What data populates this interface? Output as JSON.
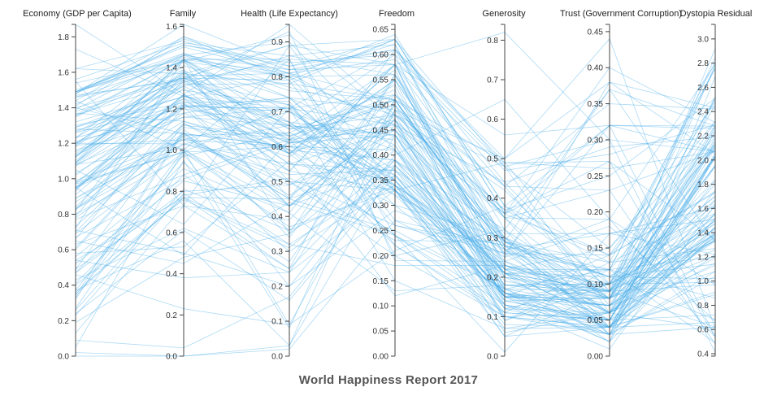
{
  "title": "World Happiness Report 2017",
  "colors": {
    "line": "#4aaee8",
    "axis": "#444444",
    "text": "#222222",
    "title": "#555555"
  },
  "chart_data": {
    "type": "parallel-coordinates",
    "title": "World Happiness Report 2017",
    "dimensions": [
      {
        "name": "Economy (GDP per Capita)",
        "range": [
          0,
          1.87
        ],
        "ticks": [
          "0.0",
          "0.2",
          "0.4",
          "0.6",
          "0.8",
          "1.0",
          "1.2",
          "1.4",
          "1.6",
          "1.8"
        ]
      },
      {
        "name": "Family",
        "range": [
          0,
          1.61
        ],
        "ticks": [
          "0.0",
          "0.2",
          "0.4",
          "0.6",
          "0.8",
          "1.0",
          "1.2",
          "1.4",
          "1.6"
        ]
      },
      {
        "name": "Health (Life Expectancy)",
        "range": [
          0,
          0.95
        ],
        "ticks": [
          "0.0",
          "0.1",
          "0.2",
          "0.3",
          "0.4",
          "0.5",
          "0.6",
          "0.7",
          "0.8",
          "0.9"
        ]
      },
      {
        "name": "Freedom",
        "range": [
          0,
          0.66
        ],
        "ticks": [
          "0.00",
          "0.05",
          "0.10",
          "0.15",
          "0.20",
          "0.25",
          "0.30",
          "0.35",
          "0.40",
          "0.45",
          "0.50",
          "0.55",
          "0.60",
          "0.65"
        ]
      },
      {
        "name": "Generosity",
        "range": [
          0,
          0.84
        ],
        "ticks": [
          "0.0",
          "0.1",
          "0.2",
          "0.3",
          "0.4",
          "0.5",
          "0.6",
          "0.7",
          "0.8"
        ]
      },
      {
        "name": "Trust (Government Corruption)",
        "range": [
          0,
          0.46
        ],
        "ticks": [
          "0.00",
          "0.05",
          "0.10",
          "0.15",
          "0.20",
          "0.25",
          "0.30",
          "0.35",
          "0.40",
          "0.45"
        ]
      },
      {
        "name": "Dystopia Residual",
        "range": [
          0.38,
          3.12
        ],
        "ticks": [
          "0.4",
          "0.6",
          "0.8",
          "1.0",
          "1.2",
          "1.4",
          "1.6",
          "1.8",
          "2.0",
          "2.2",
          "2.4",
          "2.6",
          "2.8",
          "3.0"
        ]
      }
    ],
    "rows": [
      [
        1.62,
        1.53,
        0.8,
        0.64,
        0.36,
        0.32,
        2.28
      ],
      [
        1.48,
        1.55,
        0.79,
        0.63,
        0.36,
        0.4,
        2.31
      ],
      [
        1.48,
        1.61,
        0.83,
        0.63,
        0.48,
        0.15,
        2.32
      ],
      [
        1.56,
        1.52,
        0.86,
        0.62,
        0.29,
        0.37,
        2.28
      ],
      [
        1.44,
        1.54,
        0.81,
        0.62,
        0.25,
        0.38,
        2.43
      ],
      [
        1.49,
        1.5,
        0.81,
        0.59,
        0.47,
        0.28,
        2.29
      ],
      [
        1.48,
        1.51,
        0.83,
        0.61,
        0.44,
        0.29,
        2.19
      ],
      [
        1.41,
        1.55,
        0.82,
        0.61,
        0.5,
        0.38,
        2.05
      ],
      [
        1.49,
        1.51,
        0.84,
        0.6,
        0.48,
        0.3,
        2.07
      ],
      [
        1.49,
        1.46,
        0.82,
        0.58,
        0.56,
        0.32,
        2.07
      ],
      [
        1.38,
        1.35,
        0.67,
        0.34,
        0.25,
        0.19,
        2.79
      ],
      [
        1.5,
        1.47,
        0.77,
        0.48,
        0.37,
        0.25,
        2.51
      ],
      [
        1.09,
        1.32,
        0.78,
        0.51,
        0.2,
        0.08,
        2.92
      ],
      [
        1.42,
        1.46,
        0.9,
        0.41,
        0.26,
        0.32,
        2.26
      ],
      [
        1.49,
        1.45,
        0.8,
        0.56,
        0.35,
        0.23,
        2.07
      ],
      [
        1.54,
        1.44,
        0.81,
        0.51,
        0.49,
        0.26,
        2.07
      ],
      [
        1.46,
        1.43,
        0.8,
        0.46,
        0.36,
        0.14,
        2.13
      ],
      [
        1.29,
        1.26,
        0.67,
        0.44,
        0.09,
        0.1,
        2.5
      ],
      [
        1.62,
        1.37,
        0.78,
        0.63,
        0.38,
        0.14,
        1.74
      ],
      [
        1.32,
        1.29,
        0.72,
        0.37,
        0.15,
        0.02,
        2.69
      ],
      [
        1.26,
        1.22,
        0.61,
        0.47,
        0.09,
        0.12,
        2.81
      ],
      [
        1.73,
        1.26,
        0.71,
        0.61,
        0.32,
        0.37,
        1.32
      ],
      [
        1.35,
        1.39,
        0.63,
        0.5,
        0.14,
        0.08,
        2.46
      ],
      [
        1.15,
        1.34,
        0.66,
        0.44,
        0.18,
        0.09,
        2.52
      ],
      [
        1.14,
        1.31,
        0.62,
        0.51,
        0.26,
        0.12,
        2.76
      ],
      [
        1.4,
        1.35,
        0.79,
        0.27,
        0.21,
        0.02,
        2.03
      ],
      [
        1.4,
        1.08,
        0.6,
        0.34,
        0.11,
        0.13,
        2.76
      ],
      [
        1.37,
        1.14,
        0.57,
        0.55,
        0.28,
        0.1,
        2.32
      ],
      [
        1.19,
        1.05,
        0.6,
        0.41,
        0.12,
        0.03,
        2.52
      ],
      [
        1.87,
        1.27,
        0.95,
        0.48,
        0.36,
        0.27,
        1.34
      ],
      [
        1.35,
        1.44,
        0.85,
        0.24,
        0.17,
        0.03,
        2.03
      ],
      [
        1.23,
        1.21,
        0.74,
        0.49,
        0.22,
        0.04,
        2.15
      ],
      [
        1.09,
        1.33,
        0.62,
        0.58,
        0.16,
        0.03,
        2.06
      ],
      [
        1.1,
        1.44,
        0.65,
        0.51,
        0.27,
        0.17,
        1.61
      ],
      [
        1.36,
        1.44,
        0.7,
        0.36,
        0.22,
        0.12,
        2.1
      ],
      [
        1.13,
        1.35,
        0.65,
        0.48,
        0.18,
        0.08,
        2.26
      ],
      [
        1.39,
        1.47,
        0.74,
        0.34,
        0.23,
        0.08,
        1.95
      ],
      [
        0.95,
        1.18,
        0.58,
        0.58,
        0.43,
        0.35,
        2.42
      ],
      [
        1.49,
        1.43,
        0.92,
        0.47,
        0.31,
        0.17,
        1.51
      ],
      [
        1.21,
        1.18,
        0.74,
        0.33,
        0.21,
        0.05,
        2.28
      ],
      [
        1.27,
        1.26,
        0.8,
        0.35,
        0.16,
        0.04,
        1.95
      ],
      [
        1.2,
        1.36,
        0.81,
        0.45,
        0.22,
        0.1,
        1.52
      ],
      [
        1.2,
        1.35,
        0.72,
        0.3,
        0.16,
        0.05,
        2.04
      ],
      [
        1.23,
        1.46,
        0.76,
        0.51,
        0.27,
        0.06,
        1.44
      ],
      [
        0.94,
        1.27,
        0.61,
        0.54,
        0.15,
        0.08,
        2.11
      ],
      [
        1.12,
        1.43,
        0.61,
        0.44,
        0.15,
        0.14,
        1.73
      ],
      [
        1.02,
        1.25,
        0.53,
        0.58,
        0.22,
        0.15,
        2.19
      ],
      [
        0.79,
        1.27,
        0.59,
        0.3,
        0.3,
        0.06,
        2.79
      ],
      [
        1.16,
        1.16,
        0.66,
        0.6,
        0.17,
        0.07,
        1.95
      ],
      [
        1.19,
        1.44,
        0.58,
        0.55,
        0.13,
        0.04,
        1.67
      ],
      [
        1.28,
        1.08,
        0.6,
        0.51,
        0.27,
        0.09,
        1.64
      ],
      [
        1.23,
        1.37,
        0.89,
        0.33,
        0.1,
        0.04,
        1.45
      ],
      [
        0.87,
        1.07,
        0.64,
        0.53,
        0.14,
        0.05,
        2.24
      ],
      [
        1.36,
        1.33,
        0.85,
        0.2,
        0.1,
        0.04,
        1.75
      ],
      [
        1.09,
        1.39,
        0.45,
        0.61,
        0.49,
        0.1,
        1.43
      ],
      [
        1.07,
        1.24,
        0.58,
        0.57,
        0.15,
        0.08,
        1.8
      ],
      [
        0.93,
        1.34,
        0.59,
        0.39,
        0.13,
        0.05,
        2.1
      ],
      [
        1.46,
        1.35,
        0.89,
        0.58,
        0.2,
        0.04,
        0.91
      ],
      [
        0.49,
        1.13,
        0.5,
        0.33,
        0.18,
        0.1,
        2.76
      ],
      [
        1.03,
        1.2,
        0.66,
        0.43,
        0.1,
        0.06,
        1.83
      ],
      [
        1.13,
        1.25,
        0.63,
        0.52,
        0.28,
        0.12,
        1.2
      ],
      [
        1.26,
        1.36,
        0.66,
        0.35,
        0.16,
        0.02,
        1.4
      ],
      [
        0.91,
        1.23,
        0.43,
        0.38,
        0.15,
        0.09,
        2.03
      ],
      [
        1.3,
        1.23,
        0.73,
        0.22,
        0.1,
        0.03,
        1.52
      ],
      [
        1.55,
        0.73,
        0.89,
        0.63,
        0.38,
        0.32,
        0.54
      ],
      [
        1.08,
        1.16,
        0.71,
        0.46,
        0.21,
        0.09,
        1.33
      ],
      [
        1.47,
        1.34,
        0.93,
        0.19,
        0.24,
        0.18,
        0.67
      ],
      [
        0.61,
        1.08,
        0.45,
        0.39,
        0.32,
        0.08,
        2.13
      ],
      [
        0.98,
        1.21,
        0.71,
        0.52,
        0.35,
        0.19,
        0.97
      ],
      [
        0.89,
        1.08,
        0.46,
        0.45,
        0.29,
        0.11,
        1.7
      ],
      [
        1.08,
        1.01,
        0.36,
        0.34,
        0.08,
        0.04,
        2.03
      ],
      [
        1.12,
        1.38,
        0.58,
        0.24,
        0.13,
        0.03,
        1.44
      ],
      [
        1.18,
        1.41,
        0.74,
        0.42,
        0.06,
        0.06,
        1.19
      ],
      [
        0.97,
        1.27,
        0.55,
        0.35,
        0.13,
        0.01,
        1.63
      ],
      [
        1.09,
        1.44,
        0.67,
        0.32,
        0.27,
        0.03,
        1.04
      ],
      [
        0.8,
        0.97,
        0.64,
        0.34,
        0.16,
        0.06,
        1.96
      ],
      [
        0.7,
        1.13,
        0.53,
        0.58,
        0.35,
        0.08,
        1.5
      ],
      [
        1.2,
        1.21,
        0.71,
        0.33,
        0.15,
        0.07,
        1.34
      ],
      [
        0.84,
        1.22,
        0.58,
        0.48,
        0.48,
        0.06,
        1.13
      ],
      [
        0.83,
        1.12,
        0.63,
        0.32,
        0.15,
        0.1,
        1.7
      ],
      [
        1.08,
        1.3,
        0.55,
        0.45,
        0.15,
        0.04,
        1.22
      ],
      [
        0.49,
        0.78,
        0.51,
        0.26,
        0.26,
        0.14,
        2.48
      ],
      [
        0.82,
        1.38,
        0.5,
        0.23,
        0.29,
        0.08,
        1.26
      ],
      [
        1.29,
        1.31,
        0.86,
        0.56,
        0.23,
        0.06,
        0.61
      ],
      [
        1.2,
        1.03,
        0.66,
        0.33,
        0.07,
        0.06,
        1.39
      ],
      [
        0.63,
        0.73,
        0.39,
        0.5,
        0.29,
        0.09,
        2.01
      ],
      [
        0.99,
        1.05,
        0.7,
        0.35,
        0.05,
        0.09,
        1.38
      ],
      [
        0.66,
        1.21,
        0.43,
        0.47,
        0.35,
        0.04,
        1.41
      ],
      [
        0.6,
        1.07,
        0.45,
        0.52,
        0.43,
        0.07,
        1.48
      ],
      [
        0.95,
        1.27,
        0.53,
        0.33,
        0.05,
        0.04,
        1.56
      ],
      [
        0.98,
        0.99,
        0.72,
        0.26,
        0.28,
        0.04,
        1.38
      ],
      [
        0.67,
        0.86,
        0.61,
        0.46,
        0.16,
        0.07,
        1.55
      ],
      [
        0.89,
        1.03,
        0.55,
        0.37,
        0.21,
        0.07,
        1.36
      ],
      [
        0.95,
        1.14,
        0.59,
        0.24,
        0.01,
        0.17,
        1.22
      ],
      [
        0.73,
        1.11,
        0.62,
        0.45,
        0.3,
        0.03,
        1.08
      ],
      [
        0.52,
        0.85,
        0.43,
        0.48,
        0.42,
        0.09,
        1.67
      ],
      [
        0.34,
        1.1,
        0.43,
        0.44,
        0.17,
        0.09,
        1.84
      ],
      [
        0.94,
        1.22,
        0.7,
        0.41,
        0.21,
        0.11,
        0.68
      ],
      [
        0.41,
        0.88,
        0.32,
        0.18,
        0.23,
        0.08,
        2.29
      ],
      [
        0.83,
        1.0,
        0.43,
        0.47,
        0.12,
        0.1,
        1.33
      ],
      [
        0.95,
        1.05,
        0.49,
        0.42,
        0.15,
        0.07,
        1.08
      ],
      [
        0.97,
        0.99,
        0.6,
        0.39,
        0.21,
        0.12,
        0.86
      ],
      [
        0.36,
        0.77,
        0.32,
        0.36,
        0.16,
        0.07,
        2.18
      ],
      [
        0.4,
        0.76,
        0.31,
        0.39,
        0.21,
        0.05,
        2.03
      ],
      [
        0.47,
        0.8,
        0.49,
        0.47,
        0.19,
        0.08,
        1.5
      ],
      [
        0.32,
        1.09,
        0.34,
        0.51,
        0.24,
        0.06,
        1.33
      ],
      [
        0.56,
        0.91,
        0.41,
        0.55,
        0.3,
        0.11,
        1.02
      ],
      [
        0.65,
        0.45,
        0.44,
        0.24,
        0.11,
        0.05,
        2.04
      ],
      [
        0.95,
        0.49,
        0.62,
        0.36,
        0.14,
        0.05,
        1.35
      ],
      [
        0.27,
        0.99,
        0.37,
        0.33,
        0.22,
        0.06,
        1.62
      ],
      [
        0.77,
        0.88,
        0.62,
        0.22,
        0.11,
        0.05,
        1.15
      ],
      [
        0.35,
        0.77,
        0.25,
        0.39,
        0.28,
        0.11,
        1.55
      ],
      [
        0.47,
        0.94,
        0.3,
        0.34,
        0.24,
        0.08,
        1.21
      ],
      [
        0.23,
        0.79,
        0.27,
        0.5,
        0.3,
        0.08,
        1.39
      ],
      [
        0.69,
        0.99,
        0.41,
        0.13,
        0.18,
        0.1,
        0.99
      ],
      [
        0.09,
        0.04,
        0.17,
        0.38,
        0.21,
        0.09,
        2.23
      ],
      [
        0.54,
        0.77,
        0.45,
        0.25,
        0.17,
        0.04,
        1.37
      ],
      [
        0.13,
        0.73,
        0.25,
        0.56,
        0.23,
        0.1,
        1.47
      ],
      [
        0.37,
        0.56,
        0.03,
        0.49,
        0.37,
        0.13,
        1.56
      ],
      [
        0.19,
        0.48,
        0.35,
        0.56,
        0.29,
        0.13,
        1.27
      ],
      [
        0.54,
        0.38,
        0.24,
        0.49,
        0.5,
        0.44,
        0.61
      ],
      [
        0.02,
        0.0,
        0.03,
        0.38,
        0.2,
        0.09,
        2.85
      ],
      [
        0.46,
        0.23,
        0.09,
        0.21,
        0.38,
        0.1,
        2.12
      ],
      [
        0.71,
        0.5,
        0.2,
        0.4,
        0.65,
        0.19,
        0.54
      ],
      [
        0.58,
        0.53,
        0.56,
        0.12,
        0.23,
        0.09,
        0.97
      ],
      [
        1.05,
        0.64,
        0.71,
        0.15,
        0.07,
        0.04,
        0.66
      ],
      [
        0.37,
        1.0,
        0.09,
        0.44,
        0.29,
        0.11,
        1.14
      ],
      [
        0.83,
        1.06,
        0.5,
        0.2,
        0.32,
        0.03,
        0.62
      ],
      [
        0.0,
        0.0,
        0.02,
        0.27,
        0.28,
        0.06,
        2.16
      ],
      [
        1.44,
        1.0,
        0.85,
        0.58,
        0.82,
        0.3,
        0.41
      ],
      [
        0.78,
        1.03,
        0.52,
        0.37,
        0.29,
        0.04,
        0.89
      ],
      [
        0.26,
        0.81,
        0.36,
        0.46,
        0.44,
        0.09,
        0.62
      ],
      [
        0.72,
        1.44,
        0.35,
        0.41,
        0.17,
        0.12,
        0.49
      ],
      [
        0.24,
        0.61,
        0.16,
        0.36,
        0.12,
        0.06,
        1.5
      ],
      [
        0.33,
        0.98,
        0.2,
        0.29,
        0.26,
        0.05,
        0.72
      ],
      [
        0.43,
        0.62,
        0.24,
        0.33,
        0.49,
        0.27,
        0.54
      ],
      [
        0.05,
        0.95,
        0.08,
        0.51,
        0.43,
        0.23,
        0.48
      ]
    ]
  }
}
